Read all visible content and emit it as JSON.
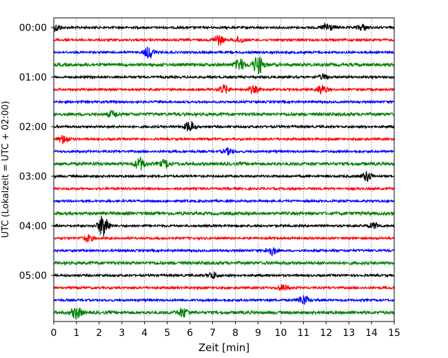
{
  "chart_data": {
    "type": "line",
    "title": "",
    "xlabel": "Zeit  [min]",
    "ylabel": "UTC (Lokalzeit = UTC + 02:00)",
    "xlim": [
      0,
      15
    ],
    "x_ticks": [
      "0",
      "1",
      "2",
      "3",
      "4",
      "5",
      "6",
      "7",
      "8",
      "9",
      "10",
      "11",
      "12",
      "13",
      "14",
      "15"
    ],
    "y_ticks": [
      "00:00",
      "01:00",
      "02:00",
      "03:00",
      "04:00",
      "05:00"
    ],
    "grid": "vertical-dotted",
    "traces_per_hour": 4,
    "trace_colors": [
      "#000000",
      "#ff0000",
      "#0000ff",
      "#008000"
    ],
    "trace_count": 24,
    "events": [
      {
        "trace": 0,
        "t": 0.1,
        "amp": 0.35
      },
      {
        "trace": 0,
        "t": 12.05,
        "amp": 0.5
      },
      {
        "trace": 0,
        "t": 13.6,
        "amp": 0.3
      },
      {
        "trace": 1,
        "t": 7.25,
        "amp": 0.55
      },
      {
        "trace": 1,
        "t": 8.2,
        "amp": 0.3
      },
      {
        "trace": 2,
        "t": 4.2,
        "amp": 0.6
      },
      {
        "trace": 3,
        "t": 9.0,
        "amp": 0.95
      },
      {
        "trace": 3,
        "t": 8.2,
        "amp": 0.55
      },
      {
        "trace": 4,
        "t": 11.9,
        "amp": 0.25
      },
      {
        "trace": 5,
        "t": 7.5,
        "amp": 0.45
      },
      {
        "trace": 5,
        "t": 8.8,
        "amp": 0.35
      },
      {
        "trace": 5,
        "t": 11.8,
        "amp": 0.45
      },
      {
        "trace": 7,
        "t": 2.6,
        "amp": 0.3
      },
      {
        "trace": 8,
        "t": 6.0,
        "amp": 0.55
      },
      {
        "trace": 9,
        "t": 0.45,
        "amp": 0.45
      },
      {
        "trace": 10,
        "t": 7.7,
        "amp": 0.3
      },
      {
        "trace": 11,
        "t": 3.8,
        "amp": 0.6
      },
      {
        "trace": 11,
        "t": 4.9,
        "amp": 0.35
      },
      {
        "trace": 12,
        "t": 13.8,
        "amp": 0.5
      },
      {
        "trace": 16,
        "t": 2.2,
        "amp": 1.25
      },
      {
        "trace": 16,
        "t": 14.1,
        "amp": 0.3
      },
      {
        "trace": 17,
        "t": 1.5,
        "amp": 0.35
      },
      {
        "trace": 18,
        "t": 9.6,
        "amp": 0.45
      },
      {
        "trace": 20,
        "t": 7.0,
        "amp": 0.35
      },
      {
        "trace": 21,
        "t": 10.1,
        "amp": 0.3
      },
      {
        "trace": 22,
        "t": 11.0,
        "amp": 0.5
      },
      {
        "trace": 23,
        "t": 1.0,
        "amp": 0.6
      },
      {
        "trace": 23,
        "t": 5.7,
        "amp": 0.45
      }
    ]
  }
}
